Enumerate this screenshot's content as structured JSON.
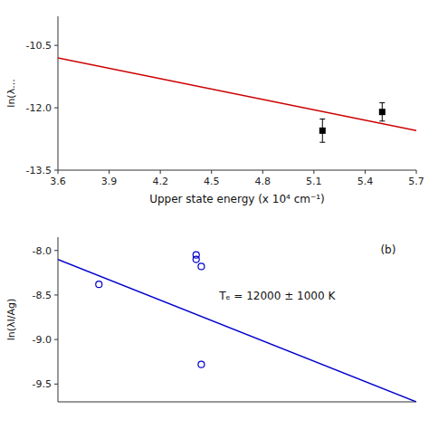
{
  "chart_data": [
    {
      "type": "scatter",
      "xlabel": "Upper state energy (x 10⁴ cm⁻¹)",
      "ylabel": "ln(λ...",
      "xlim": [
        3.6,
        5.7
      ],
      "ylim": [
        -13.5,
        -9.8
      ],
      "xticks": [
        3.6,
        3.9,
        4.2,
        4.5,
        4.8,
        5.1,
        5.4,
        5.7
      ],
      "yticks": [
        -13.5,
        {
          "value": -12.0,
          "label": "-12.0"
        },
        -10.5
      ],
      "series": [
        {
          "type": "line",
          "color": "#cc0000",
          "x": [
            3.6,
            5.7
          ],
          "values": [
            -10.8,
            -12.55
          ]
        },
        {
          "type": "scatter",
          "color": "black",
          "marker": "square",
          "x": [
            5.15,
            5.5
          ],
          "values": [
            -12.55,
            -12.1
          ],
          "errors": [
            0.28,
            0.22
          ]
        }
      ]
    },
    {
      "type": "scatter",
      "ylabel": "ln(λI/Ag)",
      "xlim": [
        0.55,
        1.25
      ],
      "ylim": [
        -9.7,
        -7.85
      ],
      "yticks": [
        -9.5,
        {
          "value": -9.0,
          "label": "-9.0"
        },
        -8.5,
        {
          "value": -8.0,
          "label": "-8.0"
        }
      ],
      "tick_labels": "y",
      "annotations": [
        "Tₑ = 12000 ± 1000 K",
        "(b)"
      ],
      "series": [
        {
          "type": "line",
          "color": "#0000cc",
          "x": [
            0.55,
            1.25
          ],
          "values": [
            -8.1,
            -9.7
          ]
        },
        {
          "type": "scatter",
          "color": "#0000cc",
          "marker": "circle",
          "x": [
            0.63,
            0.82,
            0.82,
            0.83,
            0.83
          ],
          "values": [
            -8.38,
            -8.05,
            -8.1,
            -8.18,
            -9.28
          ]
        }
      ]
    }
  ]
}
